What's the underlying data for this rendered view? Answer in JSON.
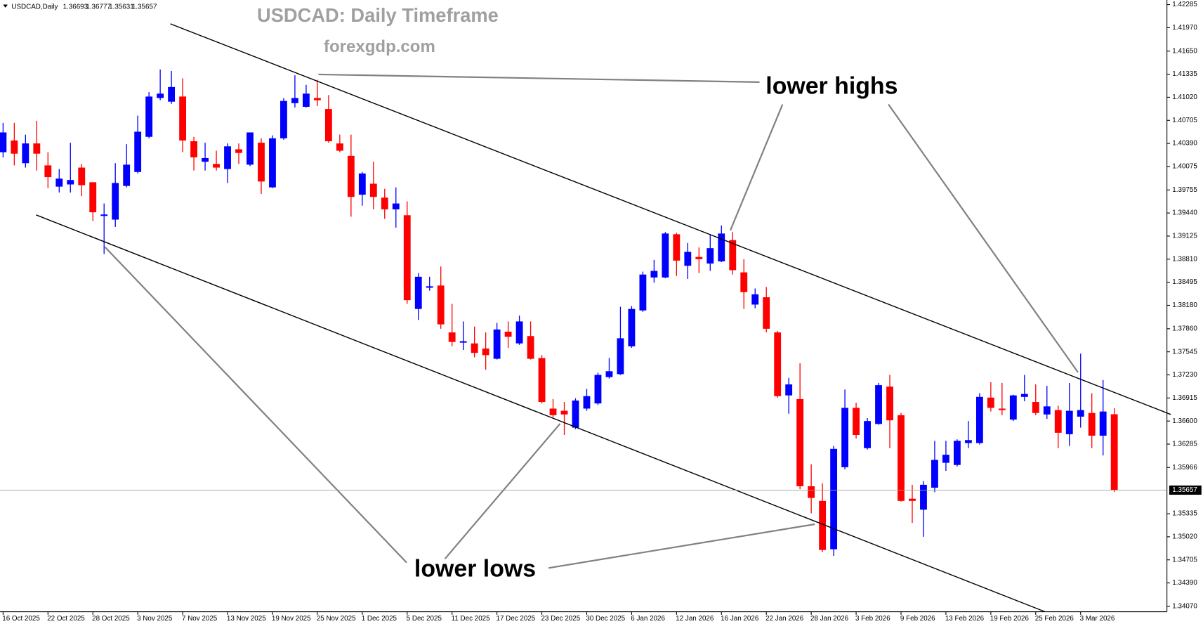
{
  "chart_data": {
    "type": "candlestick",
    "symbol": "USDCAD,Daily",
    "title": "USDCAD: Daily Timeframe",
    "subtitle": "forexgdp.com",
    "annotations": [
      "lower highs",
      "lower lows"
    ],
    "up_color": "#0000ff",
    "down_color": "#ff0000",
    "categories": [
      "16 Oct 2025",
      null,
      null,
      null,
      "22 Oct 2025",
      null,
      null,
      null,
      "28 Oct 2025",
      null,
      null,
      null,
      "3 Nov 2025",
      null,
      null,
      null,
      "7 Nov 2025",
      null,
      null,
      null,
      "13 Nov 2025",
      null,
      null,
      null,
      "19 Nov 2025",
      null,
      null,
      null,
      "25 Nov 2025",
      null,
      null,
      null,
      "1 Dec 2025",
      null,
      null,
      null,
      "5 Dec 2025",
      null,
      null,
      null,
      "11 Dec 2025",
      null,
      null,
      null,
      "17 Dec 2025",
      null,
      null,
      null,
      "23 Dec 2025",
      null,
      null,
      null,
      "30 Dec 2025",
      null,
      null,
      null,
      "6 Jan 2026",
      null,
      null,
      null,
      "12 Jan 2026",
      null,
      null,
      null,
      "16 Jan 2026",
      null,
      null,
      null,
      "22 Jan 2026",
      null,
      null,
      null,
      "28 Jan 2026",
      null,
      null,
      null,
      "3 Feb 2026",
      null,
      null,
      null,
      "9 Feb 2026",
      null,
      null,
      null,
      "13 Feb 2026",
      null,
      null,
      null,
      "19 Feb 2026",
      null,
      null,
      null,
      "25 Feb 2026",
      null,
      null,
      null,
      "3 Mar 2026",
      null,
      null,
      null
    ],
    "open": [
      1.4027,
      1.4043,
      1.4012,
      1.4039,
      1.4009,
      1.398,
      1.3983,
      1.4006,
      1.3986,
      1.394,
      1.3935,
      1.3981,
      1.4,
      1.4048,
      1.4101,
      1.4096,
      1.4103,
      1.4042,
      1.4014,
      1.4011,
      1.4004,
      1.4031,
      1.401,
      1.404,
      1.3979,
      1.4046,
      1.4094,
      1.4089,
      1.4101,
      1.4086,
      1.4039,
      1.4022,
      1.3969,
      1.3984,
      1.3965,
      1.3949,
      1.3941,
      1.3813,
      1.3842,
      1.3845,
      1.3781,
      1.3767,
      1.3766,
      1.3759,
      1.3745,
      1.3782,
      1.3766,
      1.3776,
      1.3746,
      1.3677,
      1.3674,
      1.3651,
      1.3677,
      1.3684,
      1.372,
      1.3724,
      1.3762,
      1.3811,
      1.3856,
      1.3856,
      1.3915,
      1.3872,
      1.3884,
      1.3875,
      1.3878,
      1.3907,
      1.3863,
      1.3819,
      1.3829,
      1.3781,
      1.3695,
      1.369,
      1.3571,
      1.3551,
      1.3485,
      1.3597,
      1.3678,
      1.3623,
      1.3656,
      1.3707,
      1.3668,
      1.3554,
      1.3539,
      1.3569,
      1.3603,
      1.36,
      1.363,
      1.363,
      1.3692,
      1.3677,
      1.3662,
      1.3693,
      1.3686,
      1.3669,
      1.3675,
      1.3642,
      1.3666,
      1.3671,
      1.364,
      1.36693
    ],
    "high": [
      1.4067,
      1.4067,
      1.4051,
      1.407,
      1.4027,
      1.4004,
      1.404,
      1.4011,
      1.3986,
      1.3957,
      1.4012,
      1.4038,
      1.4077,
      1.4109,
      1.414,
      1.4138,
      1.4128,
      1.4048,
      1.404,
      1.4029,
      1.4039,
      1.4039,
      1.4054,
      1.4046,
      1.405,
      1.4101,
      1.4132,
      1.4119,
      1.4126,
      1.4105,
      1.4051,
      1.4051,
      1.4,
      1.4014,
      1.3977,
      1.3979,
      1.396,
      1.3862,
      1.3857,
      1.3871,
      1.382,
      1.3796,
      1.3789,
      1.3781,
      1.3794,
      1.3796,
      1.3804,
      1.3796,
      1.375,
      1.369,
      1.3686,
      1.3691,
      1.3704,
      1.3726,
      1.3746,
      1.3816,
      1.3817,
      1.3864,
      1.388,
      1.3918,
      1.3917,
      1.3903,
      1.3897,
      1.3914,
      1.3927,
      1.3918,
      1.3881,
      1.3841,
      1.3843,
      1.3783,
      1.3719,
      1.3739,
      1.3601,
      1.3575,
      1.3626,
      1.3703,
      1.3685,
      1.3664,
      1.3712,
      1.3723,
      1.3671,
      1.3573,
      1.3578,
      1.3633,
      1.3633,
      1.3635,
      1.366,
      1.3698,
      1.3713,
      1.3712,
      1.3696,
      1.3723,
      1.371,
      1.3708,
      1.3681,
      1.3712,
      1.3752,
      1.3698,
      1.3716,
      1.36777
    ],
    "low": [
      1.402,
      1.4009,
      1.4006,
      1.4002,
      1.3978,
      1.3972,
      1.3972,
      1.3967,
      1.3933,
      1.3888,
      1.3925,
      1.3979,
      1.3998,
      1.4046,
      1.4098,
      1.4093,
      1.4027,
      1.4002,
      1.4002,
      1.4002,
      1.3985,
      1.4011,
      1.4008,
      1.397,
      1.3978,
      1.4044,
      1.4088,
      1.4088,
      1.409,
      1.404,
      1.4027,
      1.3939,
      1.3954,
      1.3949,
      1.3936,
      1.3924,
      1.382,
      1.3798,
      1.3838,
      1.3786,
      1.3762,
      1.3757,
      1.3747,
      1.373,
      1.3744,
      1.376,
      1.3764,
      1.3744,
      1.3684,
      1.3665,
      1.3641,
      1.3649,
      1.3674,
      1.3682,
      1.3718,
      1.3723,
      1.376,
      1.3809,
      1.3849,
      1.3855,
      1.3858,
      1.3854,
      1.3862,
      1.3865,
      1.3877,
      1.386,
      1.3813,
      1.3814,
      1.3781,
      1.3692,
      1.367,
      1.3567,
      1.3534,
      1.3481,
      1.3476,
      1.3594,
      1.3636,
      1.3621,
      1.3655,
      1.3623,
      1.355,
      1.3521,
      1.3502,
      1.3563,
      1.3592,
      1.3598,
      1.3623,
      1.3628,
      1.3673,
      1.3668,
      1.366,
      1.3687,
      1.3668,
      1.3663,
      1.3623,
      1.3626,
      1.3651,
      1.3623,
      1.3613,
      1.35631
    ],
    "close": [
      1.4054,
      1.4025,
      1.4039,
      1.4025,
      1.3993,
      1.3991,
      1.3989,
      1.3982,
      1.3945,
      1.3942,
      1.3985,
      1.401,
      1.4055,
      1.4103,
      1.4107,
      1.4116,
      1.4043,
      1.402,
      1.4019,
      1.4006,
      1.4035,
      1.4026,
      1.4054,
      1.3987,
      1.4046,
      1.4097,
      1.4101,
      1.4107,
      1.4098,
      1.4042,
      1.4029,
      1.3966,
      1.3998,
      1.3966,
      1.3949,
      1.3957,
      1.3825,
      1.3857,
      1.3844,
      1.3792,
      1.3768,
      1.3769,
      1.3753,
      1.375,
      1.3785,
      1.3775,
      1.3796,
      1.3745,
      1.3686,
      1.3668,
      1.3669,
      1.3688,
      1.3694,
      1.3723,
      1.3728,
      1.3773,
      1.3813,
      1.386,
      1.3865,
      1.3916,
      1.3879,
      1.3891,
      1.3881,
      1.3896,
      1.3916,
      1.3866,
      1.3836,
      1.3833,
      1.3786,
      1.3694,
      1.371,
      1.3571,
      1.3555,
      1.3484,
      1.3622,
      1.3678,
      1.3641,
      1.366,
      1.3709,
      1.3661,
      1.3551,
      1.3551,
      1.3573,
      1.3607,
      1.3614,
      1.3633,
      1.3634,
      1.3693,
      1.3678,
      1.3675,
      1.3695,
      1.3697,
      1.3671,
      1.368,
      1.3644,
      1.3674,
      1.3675,
      1.364,
      1.3673,
      1.35657
    ],
    "ylim": [
      1.33997,
      1.42348
    ],
    "yticks": [
      1.42285,
      {
        "value": 1.4197,
        "label": "1.41970"
      },
      {
        "value": 1.4165,
        "label": "1.41650"
      },
      1.41335,
      {
        "value": 1.4102,
        "label": "1.41020"
      },
      1.40705,
      {
        "value": 1.4039,
        "label": "1.40390"
      },
      1.40075,
      1.39755,
      {
        "value": 1.3944,
        "label": "1.39440"
      },
      1.39125,
      {
        "value": 1.3881,
        "label": "1.38810"
      },
      1.38495,
      {
        "value": 1.3818,
        "label": "1.38180"
      },
      {
        "value": 1.3786,
        "label": "1.37860"
      },
      1.37545,
      {
        "value": 1.3723,
        "label": "1.37230"
      },
      1.36915,
      {
        "value": 1.366,
        "label": "1.36600"
      },
      1.36285,
      1.35966,
      1.35335,
      {
        "value": 1.3502,
        "label": "1.35020"
      },
      1.34705,
      {
        "value": 1.3439,
        "label": "1.34390"
      },
      {
        "value": 1.3407,
        "label": "1.34070"
      }
    ],
    "grid": false
  }
}
